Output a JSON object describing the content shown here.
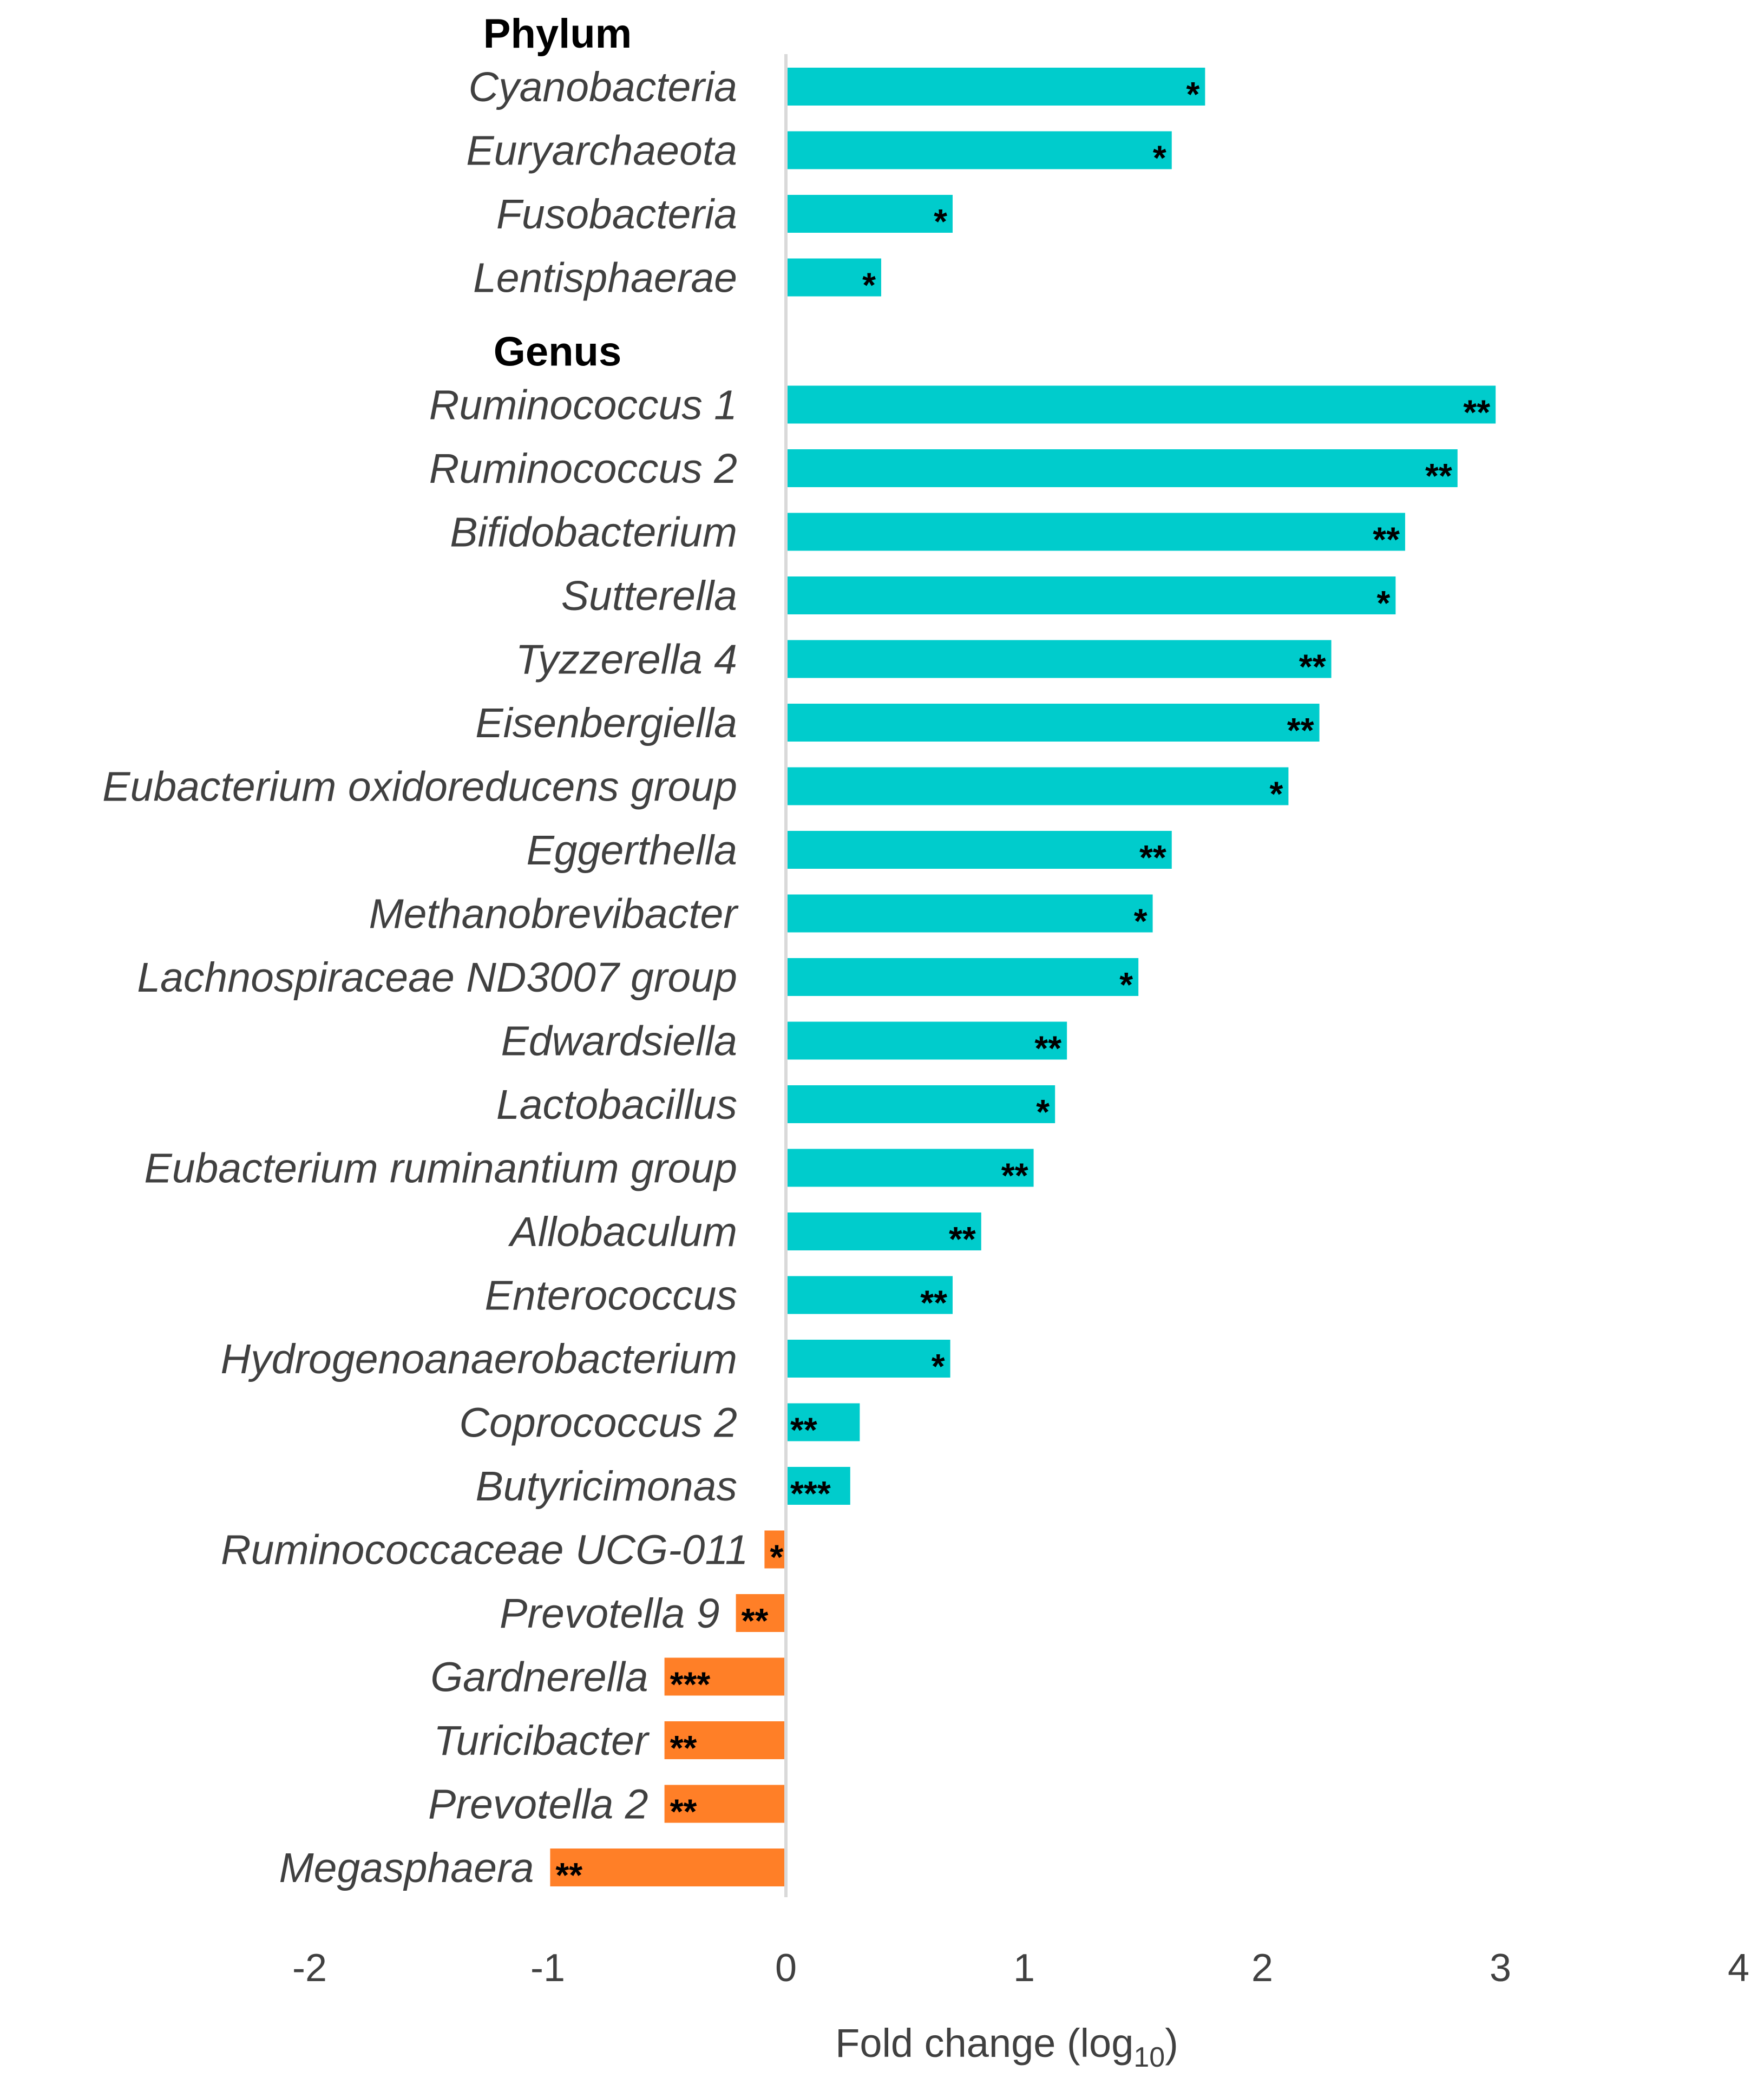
{
  "chart_data": {
    "type": "bar",
    "orientation": "horizontal",
    "xlabel": "Fold change (log",
    "xlabel_subscript": "10",
    "xlabel_close": ")",
    "xlim": [
      -2,
      4
    ],
    "xticks": [
      -2,
      -1,
      0,
      1,
      2,
      3,
      4
    ],
    "positive_color": "#00CCCC",
    "negative_color": "#FF7F27",
    "zero_line_color": "#D9D9D9",
    "groups": [
      {
        "title": "Phylum",
        "items": [
          {
            "label": "Cyanobacteria",
            "value": 1.76,
            "sig": "*"
          },
          {
            "label": "Euryarchaeota",
            "value": 1.62,
            "sig": "*"
          },
          {
            "label": "Fusobacteria",
            "value": 0.7,
            "sig": "*"
          },
          {
            "label": "Lentisphaerae",
            "value": 0.4,
            "sig": "*"
          }
        ]
      },
      {
        "title": "Genus",
        "items": [
          {
            "label": "Ruminococcus 1",
            "value": 2.98,
            "sig": "**"
          },
          {
            "label": "Ruminococcus 2",
            "value": 2.82,
            "sig": "**"
          },
          {
            "label": "Bifidobacterium",
            "value": 2.6,
            "sig": "**"
          },
          {
            "label": "Sutterella",
            "value": 2.56,
            "sig": "*"
          },
          {
            "label": "Tyzzerella 4",
            "value": 2.29,
            "sig": "**"
          },
          {
            "label": "Eisenbergiella",
            "value": 2.24,
            "sig": "**"
          },
          {
            "label": "Eubacterium oxidoreducens group",
            "value": 2.11,
            "sig": "*"
          },
          {
            "label": "Eggerthella",
            "value": 1.62,
            "sig": "**"
          },
          {
            "label": "Methanobrevibacter",
            "value": 1.54,
            "sig": "*"
          },
          {
            "label": "Lachnospiraceae ND3007 group",
            "value": 1.48,
            "sig": "*"
          },
          {
            "label": "Edwardsiella",
            "value": 1.18,
            "sig": "**"
          },
          {
            "label": "Lactobacillus",
            "value": 1.13,
            "sig": "*"
          },
          {
            "label": "Eubacterium ruminantium group",
            "value": 1.04,
            "sig": "**"
          },
          {
            "label": "Allobaculum",
            "value": 0.82,
            "sig": "**"
          },
          {
            "label": "Enterococcus",
            "value": 0.7,
            "sig": "**"
          },
          {
            "label": "Hydrogenoanaerobacterium",
            "value": 0.69,
            "sig": "*"
          },
          {
            "label": "Coprococcus 2",
            "value": 0.31,
            "sig": "**"
          },
          {
            "label": "Butyricimonas",
            "value": 0.27,
            "sig": "***"
          },
          {
            "label": "Ruminococcaceae UCG-011",
            "value": -0.09,
            "sig": "*"
          },
          {
            "label": "Prevotella 9",
            "value": -0.21,
            "sig": "**"
          },
          {
            "label": "Gardnerella",
            "value": -0.51,
            "sig": "***"
          },
          {
            "label": "Turicibacter",
            "value": -0.51,
            "sig": "**"
          },
          {
            "label": "Prevotella 2",
            "value": -0.51,
            "sig": "**"
          },
          {
            "label": "Megasphaera",
            "value": -0.99,
            "sig": "**"
          }
        ]
      }
    ]
  }
}
